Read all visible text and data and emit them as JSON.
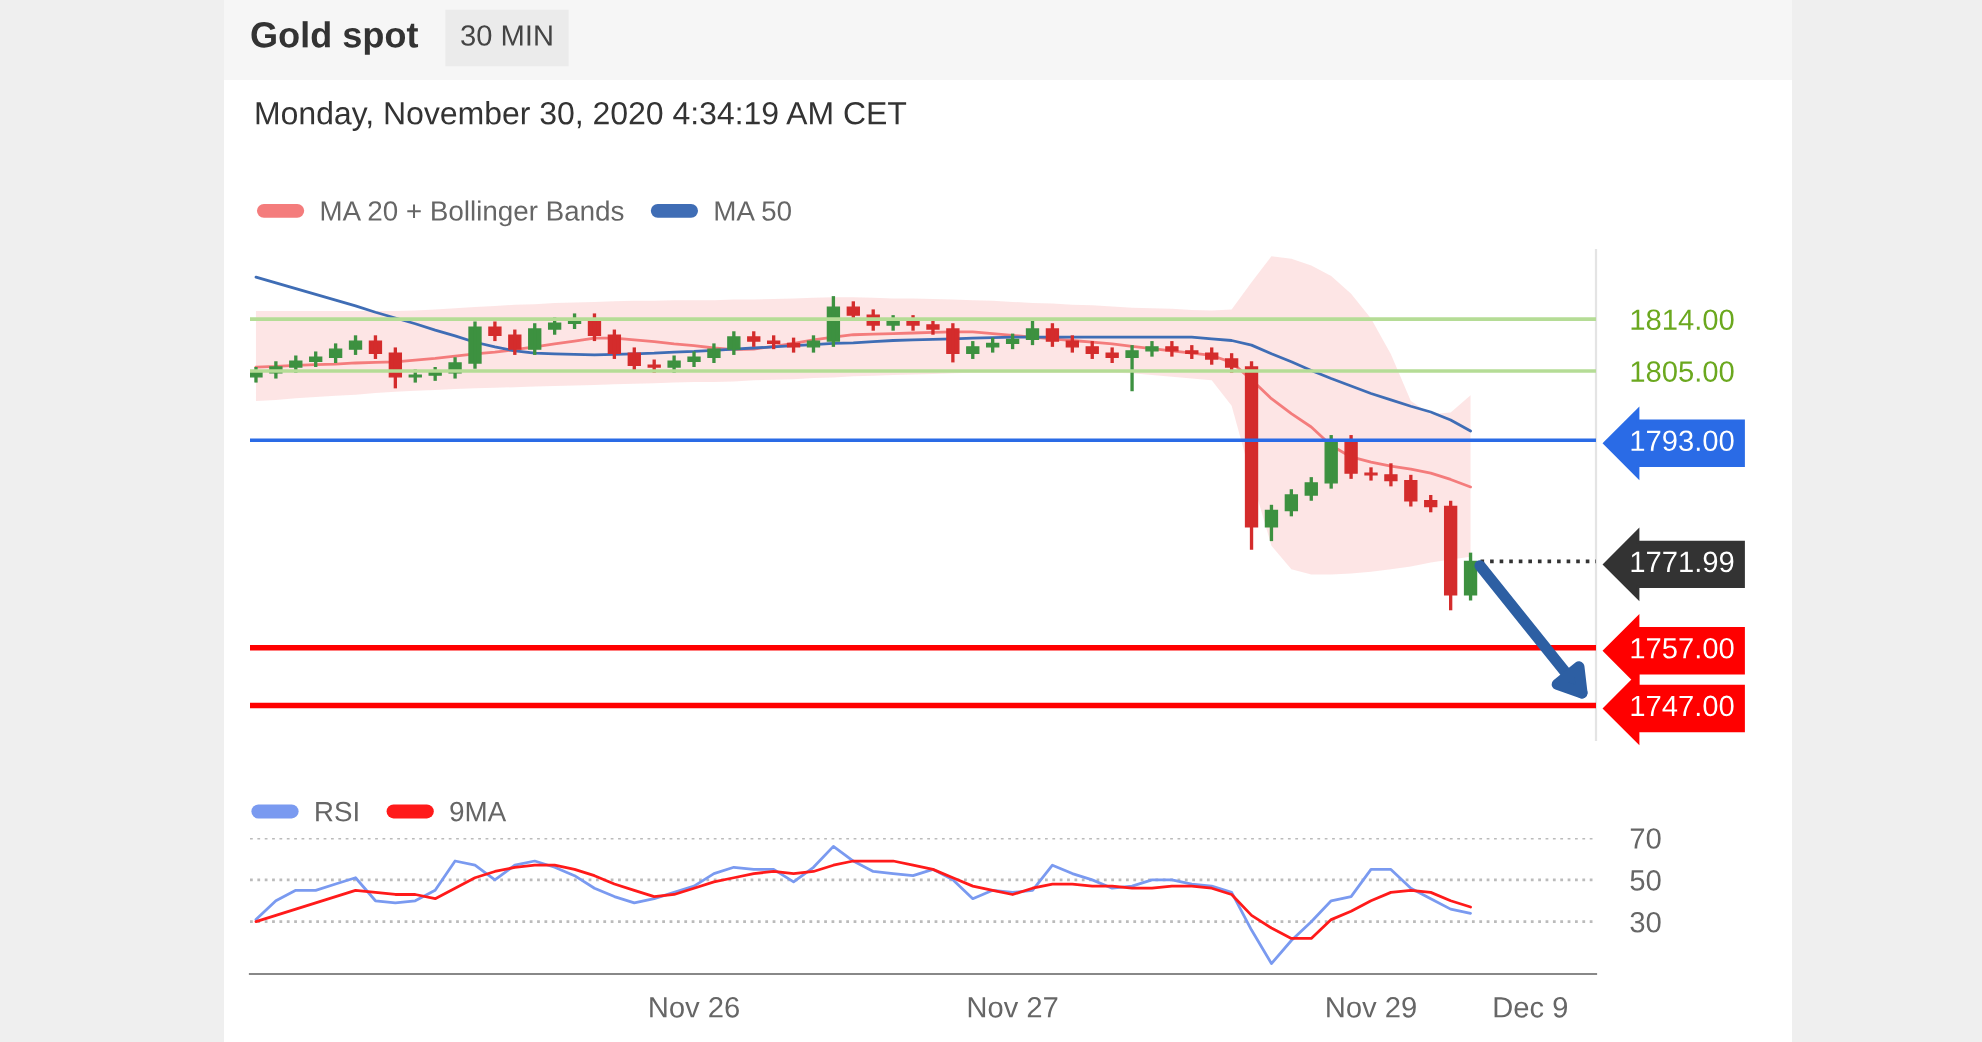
{
  "chart_data": [
    {
      "type": "candlestick",
      "title": "Gold spot",
      "subtitle": "30 MIN",
      "annotations": [
        "Monday, November 30, 2020 4:34:19 AM CET"
      ],
      "categories": [
        null,
        null,
        null,
        null,
        null,
        null,
        null,
        null,
        null,
        null,
        null,
        null,
        null,
        null,
        null,
        null,
        null,
        null,
        null,
        null,
        null,
        null,
        null,
        null,
        null,
        null,
        null,
        null,
        null,
        null,
        null,
        null,
        null,
        null,
        null,
        null,
        null,
        null,
        null,
        null,
        null,
        null,
        null,
        null,
        null,
        null,
        null,
        null,
        null,
        null,
        null,
        null,
        null,
        null,
        null,
        null,
        null,
        null,
        null,
        null,
        null,
        null,
        null,
        null,
        null,
        null,
        null
      ],
      "ohlc": [
        [
          1804.0,
          1805.7,
          1803.0,
          1804.7
        ],
        [
          1804.7,
          1806.7,
          1803.7,
          1805.7
        ],
        [
          1805.7,
          1807.7,
          1804.7,
          1806.7
        ],
        [
          1806.7,
          1808.4,
          1805.7,
          1807.4
        ],
        [
          1807.4,
          1809.8,
          1806.4,
          1808.8
        ],
        [
          1808.8,
          1811.2,
          1807.8,
          1810.2
        ],
        [
          1810.2,
          1811.2,
          1807.1,
          1808.1
        ],
        [
          1808.1,
          1809.1,
          1802.0,
          1804.0
        ],
        [
          1804.0,
          1805.3,
          1803.0,
          1804.3
        ],
        [
          1804.3,
          1805.7,
          1803.3,
          1804.7
        ],
        [
          1804.7,
          1807.4,
          1803.7,
          1806.4
        ],
        [
          1806.4,
          1813.6,
          1805.4,
          1812.6
        ],
        [
          1812.6,
          1813.6,
          1810.2,
          1811.2
        ],
        [
          1811.2,
          1812.2,
          1807.8,
          1808.8
        ],
        [
          1808.8,
          1813.3,
          1807.8,
          1812.3
        ],
        [
          1812.3,
          1814.3,
          1811.3,
          1813.3
        ],
        [
          1813.3,
          1815.0,
          1812.3,
          1814.0
        ],
        [
          1814.0,
          1815.0,
          1810.2,
          1811.2
        ],
        [
          1811.2,
          1812.2,
          1807.1,
          1808.1
        ],
        [
          1808.1,
          1809.1,
          1805.0,
          1806.0
        ],
        [
          1806.0,
          1807.0,
          1804.7,
          1805.7
        ],
        [
          1805.7,
          1807.7,
          1804.7,
          1806.7
        ],
        [
          1806.7,
          1808.4,
          1805.7,
          1807.4
        ],
        [
          1807.4,
          1809.8,
          1806.4,
          1808.8
        ],
        [
          1808.8,
          1811.9,
          1807.8,
          1810.9
        ],
        [
          1810.9,
          1811.9,
          1809.2,
          1810.2
        ],
        [
          1810.2,
          1811.2,
          1808.8,
          1809.8
        ],
        [
          1809.8,
          1810.8,
          1808.2,
          1809.2
        ],
        [
          1809.2,
          1811.2,
          1808.2,
          1810.2
        ],
        [
          1810.2,
          1818.0,
          1809.2,
          1816.1
        ],
        [
          1816.1,
          1817.1,
          1813.7,
          1814.7
        ],
        [
          1814.7,
          1815.7,
          1812.0,
          1813.0
        ],
        [
          1813.0,
          1814.7,
          1812.0,
          1813.7
        ],
        [
          1813.7,
          1814.7,
          1812.0,
          1813.0
        ],
        [
          1813.0,
          1814.0,
          1811.3,
          1812.3
        ],
        [
          1812.3,
          1813.3,
          1806.5,
          1808.1
        ],
        [
          1808.1,
          1810.2,
          1807.1,
          1809.2
        ],
        [
          1809.2,
          1810.8,
          1808.2,
          1809.8
        ],
        [
          1809.8,
          1811.5,
          1808.8,
          1810.5
        ],
        [
          1810.5,
          1813.8,
          1809.5,
          1812.3
        ],
        [
          1812.3,
          1813.3,
          1809.2,
          1810.2
        ],
        [
          1810.2,
          1811.2,
          1808.2,
          1809.2
        ],
        [
          1809.2,
          1810.2,
          1807.1,
          1808.1
        ],
        [
          1808.1,
          1809.1,
          1806.4,
          1807.4
        ],
        [
          1807.4,
          1809.5,
          1801.5,
          1808.5
        ],
        [
          1808.5,
          1810.2,
          1807.5,
          1809.2
        ],
        [
          1809.2,
          1810.2,
          1807.5,
          1808.5
        ],
        [
          1808.5,
          1809.5,
          1807.1,
          1808.1
        ],
        [
          1808.1,
          1809.1,
          1806.1,
          1807.1
        ],
        [
          1807.1,
          1808.1,
          1804.7,
          1805.7
        ],
        [
          1805.7,
          1806.7,
          1774.0,
          1778.0
        ],
        [
          1778.0,
          1781.8,
          1775.5,
          1780.8
        ],
        [
          1780.8,
          1784.5,
          1779.8,
          1783.5
        ],
        [
          1783.5,
          1786.6,
          1782.5,
          1785.6
        ],
        [
          1785.6,
          1793.9,
          1784.6,
          1792.9
        ],
        [
          1792.9,
          1793.9,
          1786.3,
          1787.3
        ],
        [
          1787.3,
          1788.3,
          1786.0,
          1787.0
        ],
        [
          1787.0,
          1789.0,
          1785.0,
          1786.0
        ],
        [
          1786.0,
          1787.0,
          1781.5,
          1782.5
        ],
        [
          1782.5,
          1783.5,
          1780.5,
          1781.5
        ],
        [
          1781.5,
          1782.5,
          1763.5,
          1766.2
        ],
        [
          1766.2,
          1773.5,
          1765.2,
          1771.99
        ],
        null,
        null,
        null,
        null,
        null
      ],
      "series": [
        {
          "name": "MA 20 + Bollinger Bands",
          "type": "line",
          "color": "#f47c7c",
          "values": [
            1805.7,
            1805.8,
            1806.0,
            1806.1,
            1806.2,
            1806.4,
            1806.5,
            1806.6,
            1806.9,
            1807.2,
            1807.6,
            1808.0,
            1808.3,
            1808.7,
            1809.2,
            1809.7,
            1810.2,
            1810.7,
            1810.7,
            1810.4,
            1810.1,
            1809.7,
            1809.4,
            1809.0,
            1808.7,
            1808.8,
            1809.3,
            1809.8,
            1810.4,
            1810.9,
            1811.3,
            1811.4,
            1811.5,
            1811.6,
            1811.7,
            1811.8,
            1811.8,
            1811.5,
            1811.2,
            1810.9,
            1810.6,
            1810.3,
            1810.0,
            1809.7,
            1809.3,
            1808.9,
            1808.5,
            1808.1,
            1807.7,
            1806.5,
            1803.5,
            1800.2,
            1797.6,
            1795.3,
            1792.1,
            1790.1,
            1789.2,
            1788.5,
            1788.0,
            1787.3,
            1786.2,
            1784.9,
            null,
            null,
            null,
            null,
            null
          ],
          "lower": [
            1799.8,
            1800.0,
            1800.3,
            1800.5,
            1800.7,
            1800.9,
            1801.2,
            1801.4,
            1801.6,
            1801.7,
            1801.9,
            1802.0,
            1802.1,
            1802.2,
            1802.3,
            1802.4,
            1802.5,
            1802.6,
            1802.7,
            1802.8,
            1802.9,
            1803.0,
            1803.1,
            1803.1,
            1803.2,
            1803.4,
            1803.5,
            1803.6,
            1803.8,
            1803.9,
            1804.1,
            1804.2,
            1804.3,
            1804.4,
            1804.5,
            1804.6,
            1804.7,
            1804.7,
            1804.7,
            1804.7,
            1804.7,
            1804.7,
            1804.7,
            1804.7,
            1804.6,
            1804.3,
            1804.0,
            1803.7,
            1803.4,
            1799.0,
            1786.5,
            1774.7,
            1770.6,
            1769.7,
            1769.7,
            1769.9,
            1770.2,
            1770.6,
            1771.1,
            1771.8,
            1772.3,
            1772.8,
            null,
            null,
            null,
            null,
            null
          ],
          "upper": [
            1815.4,
            1815.4,
            1815.4,
            1815.4,
            1815.4,
            1815.4,
            1815.4,
            1815.4,
            1815.5,
            1815.7,
            1815.9,
            1816.1,
            1816.3,
            1816.5,
            1816.6,
            1816.8,
            1816.9,
            1817.0,
            1817.1,
            1817.2,
            1817.2,
            1817.3,
            1817.3,
            1817.3,
            1817.4,
            1817.4,
            1817.5,
            1817.6,
            1817.7,
            1817.8,
            1817.8,
            1817.7,
            1817.6,
            1817.6,
            1817.5,
            1817.4,
            1817.3,
            1817.2,
            1817.0,
            1816.8,
            1816.7,
            1816.5,
            1816.4,
            1816.2,
            1816.0,
            1815.9,
            1815.8,
            1815.6,
            1815.5,
            1815.7,
            1820.4,
            1824.9,
            1824.5,
            1823.3,
            1821.5,
            1818.4,
            1814.1,
            1807.9,
            1799.8,
            1797.5,
            1797.8,
            1800.8,
            null,
            null,
            null,
            null,
            null
          ]
        },
        {
          "name": "MA 50",
          "type": "line",
          "color": "#3f6db5",
          "values": [
            1821.3,
            1820.3,
            1819.3,
            1818.3,
            1817.3,
            1816.3,
            1815.2,
            1814.2,
            1813.2,
            1812.1,
            1811.1,
            1810.0,
            1809.2,
            1808.5,
            1808.1,
            1808.0,
            1807.9,
            1807.8,
            1807.9,
            1808.0,
            1808.1,
            1808.3,
            1808.4,
            1808.6,
            1808.8,
            1809.0,
            1809.2,
            1809.4,
            1809.6,
            1809.8,
            1809.9,
            1810.1,
            1810.3,
            1810.4,
            1810.5,
            1810.6,
            1810.7,
            1810.8,
            1810.9,
            1810.9,
            1810.9,
            1810.9,
            1810.9,
            1810.9,
            1810.9,
            1810.9,
            1810.9,
            1810.9,
            1810.6,
            1810.3,
            1809.5,
            1808.0,
            1806.6,
            1805.1,
            1803.7,
            1802.4,
            1801.1,
            1800.0,
            1798.9,
            1797.9,
            1796.5,
            1794.6,
            null,
            null,
            null,
            null,
            null
          ]
        }
      ],
      "ylim": [
        1741,
        1826
      ],
      "yticks": [
        {
          "value": 1814,
          "label": "1814.00"
        },
        {
          "value": 1805,
          "label": "1805.00"
        },
        {
          "value": 1793,
          "label": "1793.00"
        },
        {
          "value": 1771.99,
          "label": "1771.99"
        },
        {
          "value": 1757,
          "label": "1757.00"
        },
        {
          "value": 1747,
          "label": "1747.00"
        }
      ],
      "ref_lines": [
        {
          "axis": "y",
          "value": 1814,
          "color": "#b5dc96"
        },
        {
          "axis": "y",
          "value": 1805,
          "color": "#b5dc96"
        },
        {
          "axis": "y",
          "value": 1793,
          "color": "#2a6be6"
        },
        {
          "axis": "y",
          "value": 1771.99,
          "color": "#333333",
          "line_style": "dotted"
        },
        {
          "axis": "y",
          "value": 1757,
          "color": "#ff0000"
        },
        {
          "axis": "y",
          "value": 1747,
          "color": "#ff0000"
        }
      ],
      "tick_labels": "y",
      "legend": "top left",
      "grid": false
    },
    {
      "type": "line",
      "categories": [
        null,
        null,
        null,
        null,
        null,
        null,
        null,
        null,
        null,
        null,
        null,
        null,
        null,
        null,
        null,
        null,
        null,
        null,
        null,
        null,
        null,
        null,
        "Nov 26",
        null,
        null,
        null,
        null,
        null,
        null,
        null,
        null,
        null,
        null,
        null,
        null,
        null,
        null,
        null,
        "Nov 27",
        null,
        null,
        null,
        null,
        null,
        null,
        null,
        null,
        null,
        null,
        null,
        null,
        null,
        null,
        null,
        null,
        null,
        "Nov 29",
        null,
        null,
        null,
        null,
        null,
        null,
        null,
        "Dec 9",
        null,
        null
      ],
      "series": [
        {
          "name": "RSI",
          "color": "#7a9af0",
          "values": [
            31,
            40,
            45,
            45,
            48,
            51,
            40,
            39,
            40,
            45,
            59,
            57,
            50,
            57,
            59,
            56,
            52,
            46,
            42,
            39,
            41,
            44,
            47,
            53,
            56,
            55,
            55,
            49,
            56,
            66,
            59,
            54,
            53,
            52,
            55,
            50,
            41,
            45,
            44,
            45,
            57,
            53,
            50,
            46,
            47,
            50,
            50,
            48,
            47,
            44,
            26,
            10,
            21,
            30,
            40,
            42,
            55,
            55,
            46,
            41,
            36,
            34,
            null,
            null,
            null,
            null,
            null
          ]
        },
        {
          "name": "9MA",
          "color": "#ff1a1a",
          "values": [
            30,
            33,
            36,
            39,
            42,
            45,
            44,
            43,
            43,
            41,
            46,
            51,
            54,
            56,
            57,
            57,
            55,
            52,
            48,
            45,
            42,
            43,
            46,
            49,
            51,
            53,
            54,
            53,
            54,
            57,
            59,
            59,
            59,
            57,
            55,
            51,
            47,
            45,
            43,
            46,
            48,
            48,
            47,
            47,
            46,
            46,
            47,
            47,
            46,
            43,
            33,
            27,
            22,
            22,
            31,
            35,
            40,
            44,
            45,
            44,
            40,
            37,
            null,
            null,
            null,
            null,
            null
          ]
        }
      ],
      "ylim": [
        5,
        70
      ],
      "yticks": [
        30,
        50,
        70
      ],
      "grid": "y",
      "legend": "top left"
    }
  ]
}
